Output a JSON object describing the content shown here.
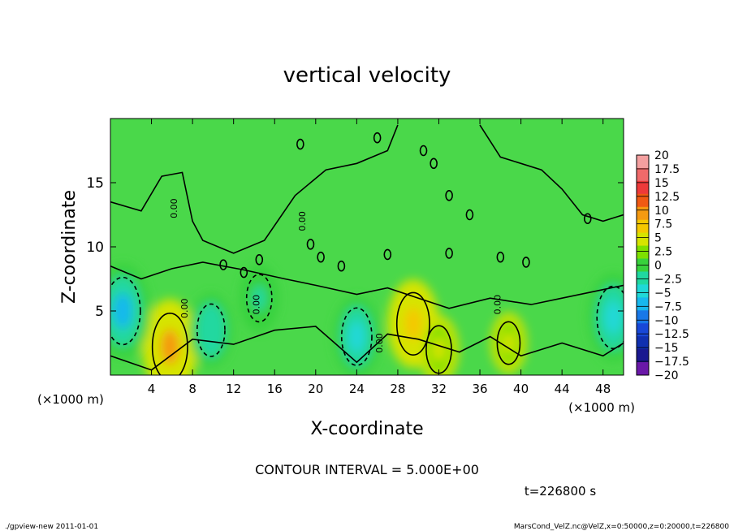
{
  "chart_data": {
    "type": "heatmap",
    "title": "vertical velocity",
    "xlabel": "X-coordinate",
    "ylabel": "Z-coordinate",
    "x_unit_note": "(×1000 m)",
    "y_unit_note": "(×1000 m)",
    "xlim": [
      0,
      50
    ],
    "ylim": [
      0,
      20
    ],
    "x_ticks": [
      4,
      8,
      12,
      16,
      20,
      24,
      28,
      32,
      36,
      40,
      44,
      48
    ],
    "y_ticks": [
      5,
      10,
      15
    ],
    "colorbar": {
      "levels": [
        20,
        17.5,
        15,
        12.5,
        10,
        7.5,
        5,
        2.5,
        0,
        -2.5,
        -5,
        -7.5,
        -10,
        -12.5,
        -15,
        -17.5,
        -20
      ],
      "tick_labels": [
        "20",
        "17.5",
        "15",
        "12.5",
        "10",
        "7.5",
        "5",
        "2.5",
        "0",
        "−2.5",
        "−5",
        "−7.5",
        "−10",
        "−12.5",
        "−15",
        "−17.5",
        "−20"
      ],
      "colors": [
        "#f4a0a0",
        "#f06a6a",
        "#ee3a3a",
        "#f05a14",
        "#f59a10",
        "#f5c800",
        "#d6e400",
        "#7ee000",
        "#38d23c",
        "#20d8a0",
        "#20d8d8",
        "#18b8ee",
        "#1878e8",
        "#1848d8",
        "#1030b0",
        "#1a1890",
        "#6a18a8"
      ]
    },
    "features": [
      {
        "kind": "updraft",
        "x": 5.8,
        "z": 2.2,
        "peak": 8
      },
      {
        "kind": "updraft",
        "x": 29.5,
        "z": 4.0,
        "peak": 7
      },
      {
        "kind": "updraft",
        "x": 32.0,
        "z": 2.0,
        "peak": 4
      },
      {
        "kind": "updraft",
        "x": 38.8,
        "z": 2.5,
        "peak": 3
      },
      {
        "kind": "downdraft",
        "x": 1.2,
        "z": 5.0,
        "peak": -8
      },
      {
        "kind": "downdraft",
        "x": 9.8,
        "z": 3.5,
        "peak": -5
      },
      {
        "kind": "downdraft",
        "x": 14.5,
        "z": 6.0,
        "peak": -4
      },
      {
        "kind": "downdraft",
        "x": 24.0,
        "z": 3.0,
        "peak": -6
      },
      {
        "kind": "downdraft",
        "x": 49.0,
        "z": 4.5,
        "peak": -7
      }
    ],
    "contour_labels": [
      "0.00",
      "0.00",
      "0.00",
      "0.00",
      "0.00",
      "0.00"
    ],
    "contour_interval_label": "CONTOUR INTERVAL = 5.000E+00",
    "time_label": "t=226800 s"
  },
  "footer": {
    "left": "./gpview-new  2011-01-01",
    "right": "MarsCond_VelZ.nc@VelZ,x=0:50000,z=0:20000,t=226800"
  }
}
